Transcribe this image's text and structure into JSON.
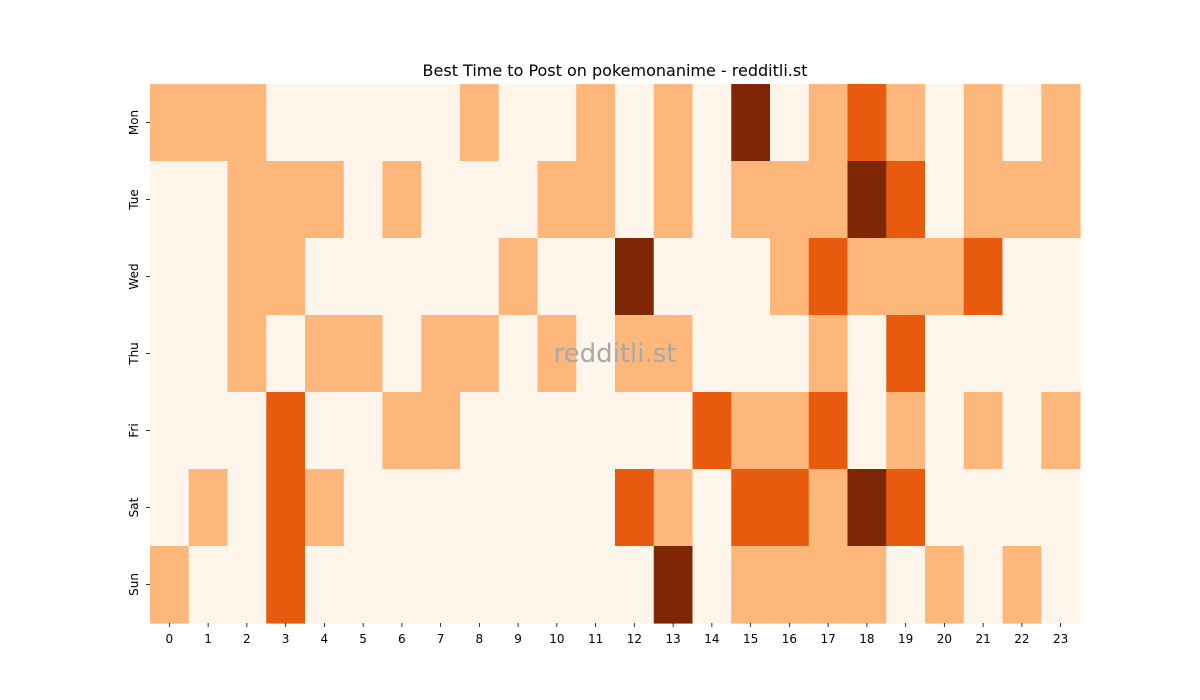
{
  "chart_data": {
    "type": "heatmap",
    "title": "Best Time to Post on pokemonanime - redditli.st",
    "watermark": "redditli.st",
    "x_categories": [
      "0",
      "1",
      "2",
      "3",
      "4",
      "5",
      "6",
      "7",
      "8",
      "9",
      "10",
      "11",
      "12",
      "13",
      "14",
      "15",
      "16",
      "17",
      "18",
      "19",
      "20",
      "21",
      "22",
      "23"
    ],
    "y_categories": [
      "Mon",
      "Tue",
      "Wed",
      "Thu",
      "Fri",
      "Sat",
      "Sun"
    ],
    "level_colors": [
      "#fff5eb",
      "#fdb77a",
      "#e85b0f",
      "#7f2704"
    ],
    "values": [
      [
        1,
        1,
        1,
        0,
        0,
        0,
        0,
        0,
        1,
        0,
        0,
        1,
        0,
        1,
        0,
        3,
        0,
        1,
        2,
        1,
        0,
        1,
        0,
        1
      ],
      [
        0,
        0,
        1,
        1,
        1,
        0,
        1,
        0,
        0,
        0,
        1,
        1,
        0,
        1,
        0,
        1,
        1,
        1,
        3,
        2,
        0,
        1,
        1,
        1
      ],
      [
        0,
        0,
        1,
        1,
        0,
        0,
        0,
        0,
        0,
        1,
        0,
        0,
        3,
        0,
        0,
        0,
        1,
        2,
        1,
        1,
        1,
        2,
        0,
        0
      ],
      [
        0,
        0,
        1,
        0,
        1,
        1,
        0,
        1,
        1,
        0,
        1,
        0,
        1,
        1,
        0,
        0,
        0,
        1,
        0,
        2,
        0,
        0,
        0,
        0
      ],
      [
        0,
        0,
        0,
        2,
        0,
        0,
        1,
        1,
        0,
        0,
        0,
        0,
        0,
        0,
        2,
        1,
        1,
        2,
        0,
        1,
        0,
        1,
        0,
        1
      ],
      [
        0,
        1,
        0,
        2,
        1,
        0,
        0,
        0,
        0,
        0,
        0,
        0,
        2,
        1,
        0,
        2,
        2,
        1,
        3,
        2,
        0,
        0,
        0,
        0
      ],
      [
        1,
        0,
        0,
        2,
        0,
        0,
        0,
        0,
        0,
        0,
        0,
        0,
        0,
        3,
        0,
        1,
        1,
        1,
        1,
        0,
        1,
        0,
        1,
        0
      ]
    ],
    "colorbar": false,
    "grid": false
  }
}
